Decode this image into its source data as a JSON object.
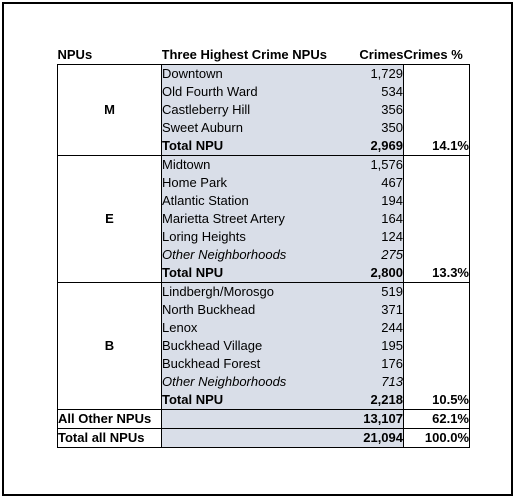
{
  "headers": {
    "npus": "NPUs",
    "names": "Three Highest Crime NPUs",
    "crimes": "Crimes",
    "pct": "Crimes %"
  },
  "groups": [
    {
      "npu": "M",
      "rows": [
        {
          "name": "Downtown",
          "crimes": "1,729"
        },
        {
          "name": "Old Fourth Ward",
          "crimes": "534"
        },
        {
          "name": "Castleberry Hill",
          "crimes": "356"
        },
        {
          "name": "Sweet Auburn",
          "crimes": "350"
        }
      ],
      "total_label": "Total NPU",
      "total": "2,969",
      "pct": "14.1%"
    },
    {
      "npu": "E",
      "rows": [
        {
          "name": "Midtown",
          "crimes": "1,576"
        },
        {
          "name": "Home Park",
          "crimes": "467"
        },
        {
          "name": "Atlantic Station",
          "crimes": "194"
        },
        {
          "name": "Marietta Street Artery",
          "crimes": "164"
        },
        {
          "name": "Loring Heights",
          "crimes": "124"
        },
        {
          "name": "Other Neighborhoods",
          "crimes": "275"
        }
      ],
      "total_label": "Total NPU",
      "total": "2,800",
      "pct": "13.3%"
    },
    {
      "npu": "B",
      "rows": [
        {
          "name": "Lindbergh/Morosgo",
          "crimes": "519"
        },
        {
          "name": "North Buckhead",
          "crimes": "371"
        },
        {
          "name": "Lenox",
          "crimes": "244"
        },
        {
          "name": "Buckhead Village",
          "crimes": "195"
        },
        {
          "name": "Buckhead Forest",
          "crimes": "176"
        },
        {
          "name": "Other Neighborhoods",
          "crimes": "713"
        }
      ],
      "total_label": "Total NPU",
      "total": "2,218",
      "pct": "10.5%"
    }
  ],
  "summary": {
    "other": {
      "label": "All Other NPUs",
      "crimes": "13,107",
      "pct": "62.1%"
    },
    "total": {
      "label": "Total all NPUs",
      "crimes": "21,094",
      "pct": "100.0%"
    }
  },
  "colors": {
    "shade": "#d9dee8",
    "border": "#000000"
  }
}
